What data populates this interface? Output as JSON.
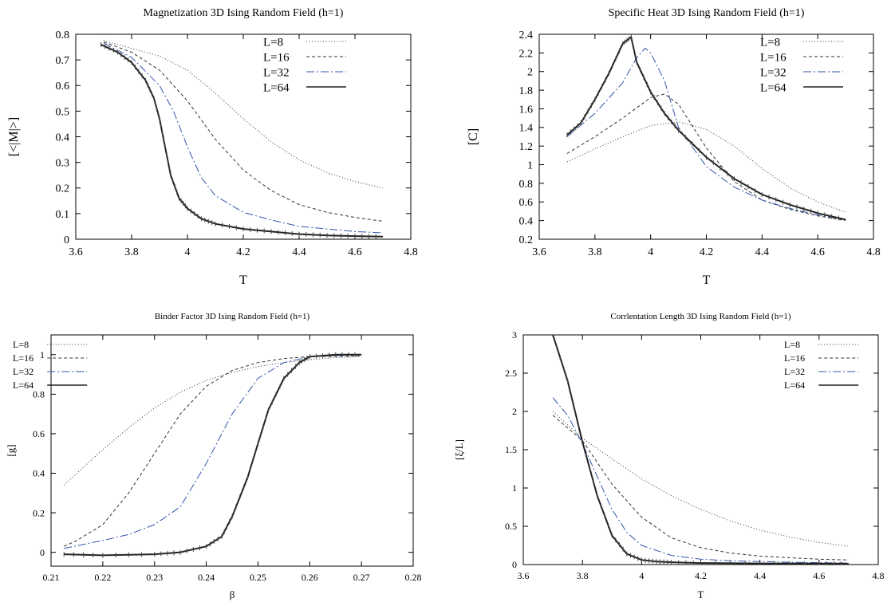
{
  "chart_data": [
    {
      "type": "line",
      "title": "Magnetization 3D Ising Random Field (h=1)",
      "xlabel": "T",
      "ylabel": "[<|M|>]",
      "xlim": [
        3.6,
        4.8
      ],
      "ylim": [
        0,
        0.8
      ],
      "xticks": [
        "3.6",
        "3.8",
        "4",
        "4.2",
        "4.4",
        "4.6",
        "4.8"
      ],
      "yticks": [
        "0",
        "0.1",
        "0.2",
        "0.3",
        "0.4",
        "0.5",
        "0.6",
        "0.7",
        "0.8"
      ],
      "legend": "top-right",
      "grid": false,
      "series": [
        {
          "name": "L=8",
          "color": "#333333",
          "style": "dotted",
          "points": [
            [
              3.7,
              0.775
            ],
            [
              3.8,
              0.745
            ],
            [
              3.9,
              0.715
            ],
            [
              4.0,
              0.66
            ],
            [
              4.1,
              0.57
            ],
            [
              4.2,
              0.47
            ],
            [
              4.3,
              0.38
            ],
            [
              4.4,
              0.31
            ],
            [
              4.5,
              0.26
            ],
            [
              4.6,
              0.225
            ],
            [
              4.7,
              0.2
            ]
          ]
        },
        {
          "name": "L=16",
          "color": "#333333",
          "style": "dashed",
          "points": [
            [
              3.7,
              0.77
            ],
            [
              3.8,
              0.73
            ],
            [
              3.9,
              0.66
            ],
            [
              4.0,
              0.54
            ],
            [
              4.1,
              0.39
            ],
            [
              4.2,
              0.27
            ],
            [
              4.3,
              0.19
            ],
            [
              4.4,
              0.135
            ],
            [
              4.5,
              0.105
            ],
            [
              4.6,
              0.085
            ],
            [
              4.7,
              0.07
            ]
          ]
        },
        {
          "name": "L=32",
          "color": "#3355aa",
          "style": "dashdot",
          "points": [
            [
              3.7,
              0.765
            ],
            [
              3.8,
              0.71
            ],
            [
              3.9,
              0.6
            ],
            [
              3.95,
              0.5
            ],
            [
              4.0,
              0.36
            ],
            [
              4.05,
              0.24
            ],
            [
              4.1,
              0.17
            ],
            [
              4.2,
              0.105
            ],
            [
              4.3,
              0.075
            ],
            [
              4.4,
              0.05
            ],
            [
              4.5,
              0.04
            ],
            [
              4.6,
              0.03
            ],
            [
              4.7,
              0.025
            ]
          ]
        },
        {
          "name": "L=64",
          "color": "#222222",
          "style": "solid",
          "markers": true,
          "points": [
            [
              3.69,
              0.76
            ],
            [
              3.75,
              0.73
            ],
            [
              3.8,
              0.69
            ],
            [
              3.85,
              0.62
            ],
            [
              3.88,
              0.55
            ],
            [
              3.9,
              0.47
            ],
            [
              3.92,
              0.36
            ],
            [
              3.94,
              0.25
            ],
            [
              3.97,
              0.16
            ],
            [
              4.0,
              0.12
            ],
            [
              4.05,
              0.08
            ],
            [
              4.1,
              0.06
            ],
            [
              4.2,
              0.04
            ],
            [
              4.3,
              0.03
            ],
            [
              4.4,
              0.02
            ],
            [
              4.5,
              0.015
            ],
            [
              4.6,
              0.012
            ],
            [
              4.7,
              0.01
            ]
          ]
        }
      ]
    },
    {
      "type": "line",
      "title": "Specific Heat 3D Ising Random Field (h=1)",
      "xlabel": "T",
      "ylabel": "[C]",
      "xlim": [
        3.6,
        4.8
      ],
      "ylim": [
        0.2,
        2.4
      ],
      "xticks": [
        "3.6",
        "3.8",
        "4",
        "4.2",
        "4.4",
        "4.6",
        "4.8"
      ],
      "yticks": [
        "0.2",
        "0.4",
        "0.6",
        "0.8",
        "1",
        "1.2",
        "1.4",
        "1.6",
        "1.8",
        "2",
        "2.2",
        "2.4"
      ],
      "legend": "top-right",
      "grid": false,
      "series": [
        {
          "name": "L=8",
          "color": "#333333",
          "style": "dotted",
          "points": [
            [
              3.7,
              1.03
            ],
            [
              3.8,
              1.17
            ],
            [
              3.9,
              1.3
            ],
            [
              4.0,
              1.42
            ],
            [
              4.1,
              1.46
            ],
            [
              4.2,
              1.38
            ],
            [
              4.3,
              1.2
            ],
            [
              4.4,
              0.96
            ],
            [
              4.5,
              0.75
            ],
            [
              4.6,
              0.6
            ],
            [
              4.7,
              0.49
            ]
          ]
        },
        {
          "name": "L=16",
          "color": "#333333",
          "style": "dashed",
          "points": [
            [
              3.7,
              1.12
            ],
            [
              3.8,
              1.3
            ],
            [
              3.9,
              1.5
            ],
            [
              4.0,
              1.72
            ],
            [
              4.05,
              1.76
            ],
            [
              4.1,
              1.65
            ],
            [
              4.2,
              1.18
            ],
            [
              4.3,
              0.82
            ],
            [
              4.4,
              0.62
            ],
            [
              4.5,
              0.52
            ],
            [
              4.6,
              0.45
            ],
            [
              4.7,
              0.4
            ]
          ]
        },
        {
          "name": "L=32",
          "color": "#3355aa",
          "style": "dashdot",
          "points": [
            [
              3.7,
              1.3
            ],
            [
              3.8,
              1.55
            ],
            [
              3.9,
              1.88
            ],
            [
              3.95,
              2.15
            ],
            [
              3.98,
              2.25
            ],
            [
              4.0,
              2.2
            ],
            [
              4.05,
              1.9
            ],
            [
              4.1,
              1.4
            ],
            [
              4.2,
              0.98
            ],
            [
              4.3,
              0.76
            ],
            [
              4.4,
              0.62
            ],
            [
              4.5,
              0.53
            ],
            [
              4.6,
              0.46
            ],
            [
              4.7,
              0.41
            ]
          ]
        },
        {
          "name": "L=64",
          "color": "#222222",
          "style": "solid",
          "markers": true,
          "points": [
            [
              3.7,
              1.32
            ],
            [
              3.75,
              1.45
            ],
            [
              3.8,
              1.7
            ],
            [
              3.85,
              1.98
            ],
            [
              3.9,
              2.3
            ],
            [
              3.93,
              2.37
            ],
            [
              3.95,
              2.1
            ],
            [
              4.0,
              1.78
            ],
            [
              4.05,
              1.55
            ],
            [
              4.1,
              1.37
            ],
            [
              4.2,
              1.08
            ],
            [
              4.3,
              0.85
            ],
            [
              4.4,
              0.68
            ],
            [
              4.5,
              0.57
            ],
            [
              4.6,
              0.48
            ],
            [
              4.7,
              0.41
            ]
          ]
        }
      ]
    },
    {
      "type": "line",
      "title": "Binder Factor 3D Ising Random Field (h=1)",
      "xlabel": "β",
      "ylabel": "[g]",
      "xlim": [
        0.21,
        0.28
      ],
      "ylim": [
        -0.07,
        1.1
      ],
      "xticks": [
        "0.21",
        "0.22",
        "0.23",
        "0.24",
        "0.25",
        "0.26",
        "0.27",
        "0.28"
      ],
      "yticks": [
        "0",
        "0.2",
        "0.4",
        "0.6",
        "0.8",
        "1"
      ],
      "legend": "top-left",
      "grid": false,
      "series": [
        {
          "name": "L=8",
          "color": "#333333",
          "style": "dotted",
          "points": [
            [
              0.2125,
              0.34
            ],
            [
              0.215,
              0.4
            ],
            [
              0.22,
              0.52
            ],
            [
              0.225,
              0.63
            ],
            [
              0.23,
              0.73
            ],
            [
              0.235,
              0.81
            ],
            [
              0.24,
              0.87
            ],
            [
              0.245,
              0.91
            ],
            [
              0.25,
              0.94
            ],
            [
              0.255,
              0.96
            ],
            [
              0.26,
              0.975
            ],
            [
              0.265,
              0.985
            ],
            [
              0.27,
              0.99
            ]
          ]
        },
        {
          "name": "L=16",
          "color": "#333333",
          "style": "dashed",
          "points": [
            [
              0.2125,
              0.03
            ],
            [
              0.215,
              0.06
            ],
            [
              0.22,
              0.14
            ],
            [
              0.225,
              0.3
            ],
            [
              0.23,
              0.5
            ],
            [
              0.235,
              0.7
            ],
            [
              0.24,
              0.84
            ],
            [
              0.245,
              0.92
            ],
            [
              0.25,
              0.96
            ],
            [
              0.255,
              0.98
            ],
            [
              0.26,
              0.99
            ],
            [
              0.27,
              0.995
            ]
          ]
        },
        {
          "name": "L=32",
          "color": "#3355aa",
          "style": "dashdot",
          "points": [
            [
              0.2125,
              0.02
            ],
            [
              0.22,
              0.06
            ],
            [
              0.225,
              0.09
            ],
            [
              0.23,
              0.14
            ],
            [
              0.235,
              0.23
            ],
            [
              0.24,
              0.45
            ],
            [
              0.245,
              0.7
            ],
            [
              0.25,
              0.88
            ],
            [
              0.255,
              0.96
            ],
            [
              0.26,
              0.99
            ],
            [
              0.27,
              1.0
            ]
          ]
        },
        {
          "name": "L=64",
          "color": "#222222",
          "style": "solid",
          "markers": true,
          "points": [
            [
              0.2125,
              -0.01
            ],
            [
              0.22,
              -0.015
            ],
            [
              0.23,
              -0.01
            ],
            [
              0.235,
              0.0
            ],
            [
              0.24,
              0.03
            ],
            [
              0.243,
              0.08
            ],
            [
              0.245,
              0.18
            ],
            [
              0.248,
              0.38
            ],
            [
              0.25,
              0.55
            ],
            [
              0.252,
              0.72
            ],
            [
              0.255,
              0.88
            ],
            [
              0.258,
              0.96
            ],
            [
              0.26,
              0.99
            ],
            [
              0.265,
              1.0
            ],
            [
              0.27,
              1.0
            ]
          ]
        }
      ]
    },
    {
      "type": "line",
      "title": "Corrlentation Length 3D Ising Random Field (h=1)",
      "xlabel": "T",
      "ylabel": "[ξ/L]",
      "xlim": [
        3.6,
        4.8
      ],
      "ylim": [
        0,
        3
      ],
      "xticks": [
        "3.6",
        "3.8",
        "4",
        "4.2",
        "4.4",
        "4.6",
        "4.8"
      ],
      "yticks": [
        "0",
        "0.5",
        "1",
        "1.5",
        "2",
        "2.5",
        "3"
      ],
      "legend": "top-right",
      "grid": false,
      "series": [
        {
          "name": "L=8",
          "color": "#333333",
          "style": "dotted",
          "points": [
            [
              3.7,
              2.0
            ],
            [
              3.8,
              1.65
            ],
            [
              3.9,
              1.38
            ],
            [
              4.0,
              1.12
            ],
            [
              4.1,
              0.9
            ],
            [
              4.2,
              0.72
            ],
            [
              4.3,
              0.57
            ],
            [
              4.4,
              0.45
            ],
            [
              4.5,
              0.36
            ],
            [
              4.6,
              0.29
            ],
            [
              4.7,
              0.24
            ]
          ]
        },
        {
          "name": "L=16",
          "color": "#333333",
          "style": "dashed",
          "points": [
            [
              3.7,
              1.95
            ],
            [
              3.8,
              1.62
            ],
            [
              3.9,
              1.05
            ],
            [
              4.0,
              0.62
            ],
            [
              4.1,
              0.35
            ],
            [
              4.2,
              0.22
            ],
            [
              4.3,
              0.15
            ],
            [
              4.4,
              0.11
            ],
            [
              4.5,
              0.09
            ],
            [
              4.6,
              0.07
            ],
            [
              4.7,
              0.06
            ]
          ]
        },
        {
          "name": "L=32",
          "color": "#3355aa",
          "style": "dashdot",
          "points": [
            [
              3.7,
              2.18
            ],
            [
              3.75,
              1.95
            ],
            [
              3.8,
              1.58
            ],
            [
              3.85,
              1.15
            ],
            [
              3.9,
              0.72
            ],
            [
              3.95,
              0.42
            ],
            [
              4.0,
              0.25
            ],
            [
              4.1,
              0.12
            ],
            [
              4.2,
              0.07
            ],
            [
              4.3,
              0.05
            ],
            [
              4.4,
              0.04
            ],
            [
              4.5,
              0.03
            ],
            [
              4.6,
              0.025
            ],
            [
              4.7,
              0.02
            ]
          ]
        },
        {
          "name": "L=64",
          "color": "#222222",
          "style": "solid",
          "markers": true,
          "points": [
            [
              3.7,
              3.0
            ],
            [
              3.75,
              2.4
            ],
            [
              3.8,
              1.6
            ],
            [
              3.85,
              0.9
            ],
            [
              3.9,
              0.38
            ],
            [
              3.95,
              0.14
            ],
            [
              4.0,
              0.06
            ],
            [
              4.05,
              0.04
            ],
            [
              4.1,
              0.03
            ],
            [
              4.2,
              0.02
            ],
            [
              4.4,
              0.015
            ],
            [
              4.6,
              0.012
            ],
            [
              4.7,
              0.01
            ]
          ]
        }
      ]
    }
  ]
}
